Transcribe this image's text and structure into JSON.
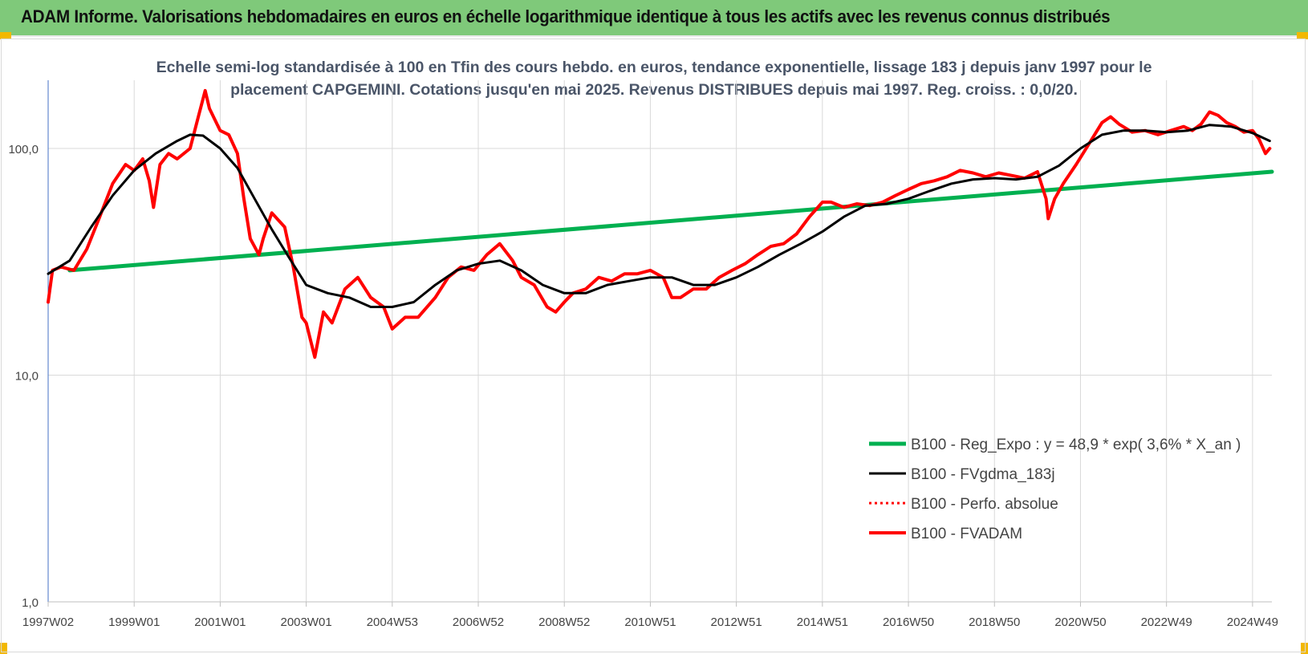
{
  "header": {
    "title": "ADAM Informe. Valorisations hebdomadaires en euros en échelle logarithmique identique à tous les actifs avec les revenus connus distribués"
  },
  "colors": {
    "header_bg": "#7fc97a",
    "reg_expo": "#00b050",
    "fvgdma": "#000000",
    "perfo": "#ff0000",
    "fvadam": "#ff0000",
    "gridline": "#d9d9d9",
    "subtitle": "#4a5568"
  },
  "chart_data": {
    "type": "line",
    "title": "Echelle semi-log standardisée à 100 en Tfin des cours hebdo. en euros, tendance exponentielle, lissage 183 j depuis janv 1997 pour le placement CAPGEMINI. Cotations jusqu'en mai 2025. Revenus DISTRIBUES depuis mai 1997. Reg. croiss. : 0,0/20.",
    "y_scale": "log",
    "ylim": [
      1,
      200
    ],
    "y_ticks": [
      1,
      10,
      100
    ],
    "y_tick_labels": [
      "1,0",
      "10,0",
      "100,0"
    ],
    "x_range": [
      1997.0,
      2025.45
    ],
    "x_ticks": [
      {
        "x": 1997.0,
        "label": "1997W02"
      },
      {
        "x": 1999.0,
        "label": "1999W01"
      },
      {
        "x": 2001.0,
        "label": "2001W01"
      },
      {
        "x": 2003.0,
        "label": "2003W01"
      },
      {
        "x": 2005.0,
        "label": "2004W53"
      },
      {
        "x": 2007.0,
        "label": "2006W52"
      },
      {
        "x": 2009.0,
        "label": "2008W52"
      },
      {
        "x": 2011.0,
        "label": "2010W51"
      },
      {
        "x": 2013.0,
        "label": "2012W51"
      },
      {
        "x": 2015.0,
        "label": "2014W51"
      },
      {
        "x": 2017.0,
        "label": "2016W50"
      },
      {
        "x": 2019.0,
        "label": "2018W50"
      },
      {
        "x": 2021.0,
        "label": "2020W50"
      },
      {
        "x": 2023.0,
        "label": "2022W49"
      },
      {
        "x": 2025.0,
        "label": "2024W49"
      }
    ],
    "grid": {
      "horizontal": true,
      "vertical": true
    },
    "legend_position": "bottom-right",
    "series": [
      {
        "name": "B100 - Reg_Expo : y = 48,9 * exp( 3,6% * X_an )",
        "style": "solid",
        "color": "#00b050",
        "x": [
          1997.5,
          2025.45
        ],
        "y": [
          29,
          79
        ]
      },
      {
        "name": "B100 - FVgdma_183j",
        "style": "solid",
        "color": "#000000",
        "x": [
          1997.0,
          1997.5,
          1998.0,
          1998.5,
          1999.0,
          1999.5,
          2000.0,
          2000.3,
          2000.6,
          2001.0,
          2001.4,
          2001.8,
          2002.2,
          2002.6,
          2003.0,
          2003.5,
          2004.0,
          2004.5,
          2005.0,
          2005.5,
          2006.0,
          2006.5,
          2007.0,
          2007.5,
          2008.0,
          2008.5,
          2009.0,
          2009.5,
          2010.0,
          2010.5,
          2011.0,
          2011.5,
          2012.0,
          2012.5,
          2013.0,
          2013.5,
          2014.0,
          2014.5,
          2015.0,
          2015.5,
          2016.0,
          2016.5,
          2017.0,
          2017.5,
          2018.0,
          2018.5,
          2019.0,
          2019.5,
          2020.0,
          2020.5,
          2021.0,
          2021.5,
          2022.0,
          2022.5,
          2023.0,
          2023.5,
          2024.0,
          2024.5,
          2025.0,
          2025.4
        ],
        "y": [
          28,
          32,
          45,
          62,
          80,
          95,
          108,
          115,
          114,
          100,
          82,
          60,
          44,
          33,
          25,
          23,
          22,
          20,
          20,
          21,
          25,
          29,
          31,
          32,
          29,
          25,
          23,
          23,
          25,
          26,
          27,
          27,
          25,
          25,
          27,
          30,
          34,
          38,
          43,
          50,
          56,
          57,
          60,
          65,
          70,
          73,
          74,
          73,
          75,
          84,
          100,
          115,
          120,
          120,
          118,
          120,
          127,
          125,
          117,
          108
        ]
      },
      {
        "name": "B100 - Perfo. absolue",
        "style": "dotted",
        "color": "#ff0000",
        "x": [],
        "y": []
      },
      {
        "name": "B100 - FVADAM",
        "style": "solid",
        "color": "#ff0000",
        "x": [
          1997.0,
          1997.1,
          1997.3,
          1997.6,
          1997.9,
          1998.2,
          1998.5,
          1998.8,
          1999.0,
          1999.2,
          1999.35,
          1999.45,
          1999.6,
          1999.8,
          2000.0,
          2000.3,
          2000.5,
          2000.65,
          2000.75,
          2001.0,
          2001.2,
          2001.4,
          2001.55,
          2001.7,
          2001.9,
          2002.0,
          2002.2,
          2002.5,
          2002.7,
          2002.9,
          2003.0,
          2003.2,
          2003.4,
          2003.6,
          2003.9,
          2004.2,
          2004.5,
          2004.8,
          2005.0,
          2005.3,
          2005.6,
          2006.0,
          2006.3,
          2006.6,
          2006.9,
          2007.2,
          2007.5,
          2007.8,
          2008.0,
          2008.3,
          2008.6,
          2008.8,
          2009.0,
          2009.2,
          2009.5,
          2009.8,
          2010.1,
          2010.4,
          2010.7,
          2011.0,
          2011.3,
          2011.5,
          2011.7,
          2012.0,
          2012.3,
          2012.6,
          2012.9,
          2013.2,
          2013.5,
          2013.8,
          2014.1,
          2014.4,
          2014.7,
          2015.0,
          2015.2,
          2015.5,
          2015.8,
          2016.1,
          2016.4,
          2016.7,
          2017.0,
          2017.3,
          2017.6,
          2017.9,
          2018.2,
          2018.5,
          2018.8,
          2019.1,
          2019.4,
          2019.7,
          2020.0,
          2020.2,
          2020.25,
          2020.4,
          2020.6,
          2020.9,
          2021.2,
          2021.5,
          2021.7,
          2021.9,
          2022.2,
          2022.5,
          2022.8,
          2023.1,
          2023.4,
          2023.6,
          2023.8,
          2024.0,
          2024.2,
          2024.4,
          2024.6,
          2024.8,
          2025.0,
          2025.15,
          2025.3,
          2025.4
        ],
        "y": [
          21,
          29,
          30,
          29,
          36,
          50,
          70,
          85,
          80,
          90,
          72,
          55,
          85,
          95,
          90,
          100,
          140,
          180,
          150,
          120,
          115,
          95,
          60,
          40,
          34,
          40,
          52,
          45,
          30,
          18,
          17,
          12,
          19,
          17,
          24,
          27,
          22,
          20,
          16,
          18,
          18,
          22,
          27,
          30,
          29,
          34,
          38,
          32,
          27,
          25,
          20,
          19,
          21,
          23,
          24,
          27,
          26,
          28,
          28,
          29,
          27,
          22,
          22,
          24,
          24,
          27,
          29,
          31,
          34,
          37,
          38,
          42,
          50,
          58,
          58,
          55,
          57,
          56,
          58,
          62,
          66,
          70,
          72,
          75,
          80,
          78,
          75,
          78,
          76,
          74,
          79,
          60,
          49,
          60,
          70,
          85,
          105,
          130,
          138,
          128,
          118,
          120,
          115,
          120,
          125,
          120,
          128,
          145,
          140,
          130,
          125,
          118,
          120,
          110,
          95,
          100
        ]
      }
    ]
  }
}
